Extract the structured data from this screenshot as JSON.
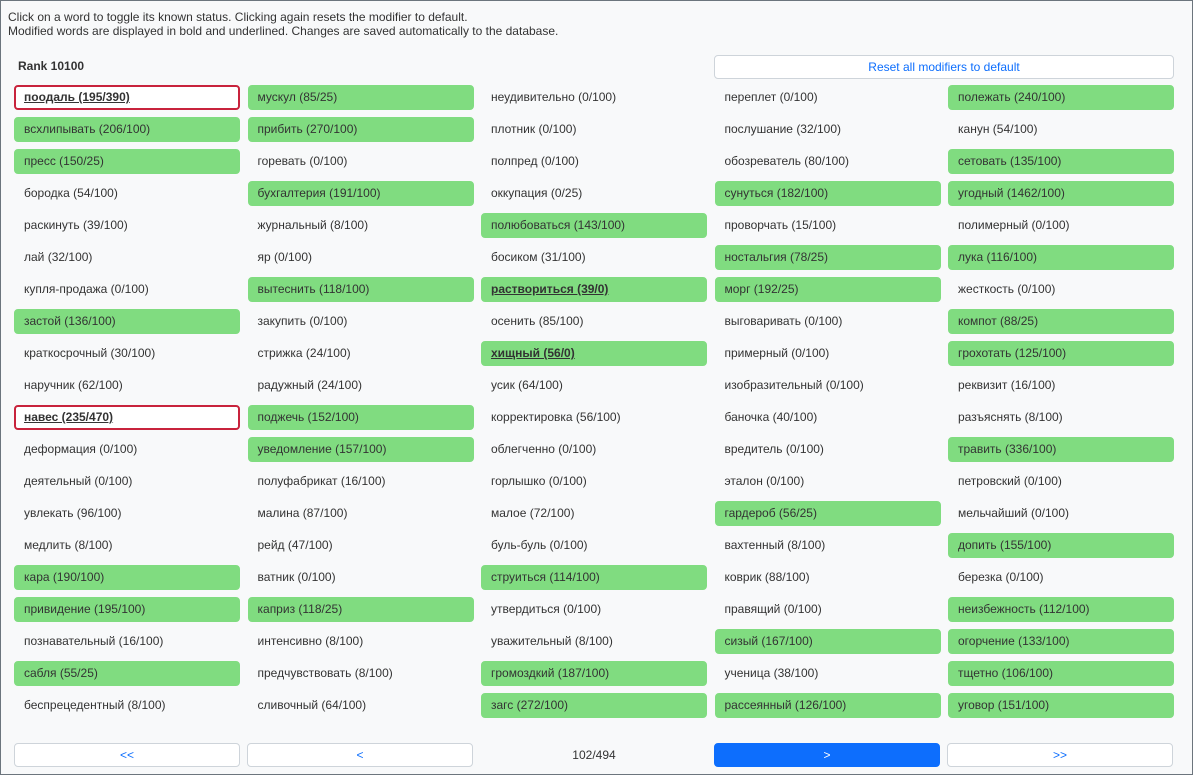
{
  "instructions": {
    "line1": "Click on a word to toggle its known status. Clicking again resets the modifier to default.",
    "line2": "Modified words are displayed in bold and underlined. Changes are saved automatically to the database."
  },
  "rank_label": "Rank 10100",
  "reset_label": "Reset all modifiers to default",
  "colors": {
    "known": "#80dc80",
    "flagged_border": "#c8233c",
    "primary": "#0d6efd"
  },
  "words": [
    {
      "text": "поодаль (195/390)",
      "known": false,
      "modified": true,
      "flagged": true
    },
    {
      "text": "мускул (85/25)",
      "known": true,
      "modified": false,
      "flagged": false
    },
    {
      "text": "неудивительно (0/100)",
      "known": false,
      "modified": false,
      "flagged": false
    },
    {
      "text": "переплет (0/100)",
      "known": false,
      "modified": false,
      "flagged": false
    },
    {
      "text": "полежать (240/100)",
      "known": true,
      "modified": false,
      "flagged": false
    },
    {
      "text": "всхлипывать (206/100)",
      "known": true,
      "modified": false,
      "flagged": false
    },
    {
      "text": "прибить (270/100)",
      "known": true,
      "modified": false,
      "flagged": false
    },
    {
      "text": "плотник (0/100)",
      "known": false,
      "modified": false,
      "flagged": false
    },
    {
      "text": "послушание (32/100)",
      "known": false,
      "modified": false,
      "flagged": false
    },
    {
      "text": "канун (54/100)",
      "known": false,
      "modified": false,
      "flagged": false
    },
    {
      "text": "пресс (150/25)",
      "known": true,
      "modified": false,
      "flagged": false
    },
    {
      "text": "горевать (0/100)",
      "known": false,
      "modified": false,
      "flagged": false
    },
    {
      "text": "полпред (0/100)",
      "known": false,
      "modified": false,
      "flagged": false
    },
    {
      "text": "обозреватель (80/100)",
      "known": false,
      "modified": false,
      "flagged": false
    },
    {
      "text": "сетовать (135/100)",
      "known": true,
      "modified": false,
      "flagged": false
    },
    {
      "text": "бородка (54/100)",
      "known": false,
      "modified": false,
      "flagged": false
    },
    {
      "text": "бухгалтерия (191/100)",
      "known": true,
      "modified": false,
      "flagged": false
    },
    {
      "text": "оккупация (0/25)",
      "known": false,
      "modified": false,
      "flagged": false
    },
    {
      "text": "сунуться (182/100)",
      "known": true,
      "modified": false,
      "flagged": false
    },
    {
      "text": "угодный (1462/100)",
      "known": true,
      "modified": false,
      "flagged": false
    },
    {
      "text": "раскинуть (39/100)",
      "known": false,
      "modified": false,
      "flagged": false
    },
    {
      "text": "журнальный (8/100)",
      "known": false,
      "modified": false,
      "flagged": false
    },
    {
      "text": "полюбоваться (143/100)",
      "known": true,
      "modified": false,
      "flagged": false
    },
    {
      "text": "проворчать (15/100)",
      "known": false,
      "modified": false,
      "flagged": false
    },
    {
      "text": "полимерный (0/100)",
      "known": false,
      "modified": false,
      "flagged": false
    },
    {
      "text": "лай (32/100)",
      "known": false,
      "modified": false,
      "flagged": false
    },
    {
      "text": "яр (0/100)",
      "known": false,
      "modified": false,
      "flagged": false
    },
    {
      "text": "босиком (31/100)",
      "known": false,
      "modified": false,
      "flagged": false
    },
    {
      "text": "ностальгия (78/25)",
      "known": true,
      "modified": false,
      "flagged": false
    },
    {
      "text": "лука (116/100)",
      "known": true,
      "modified": false,
      "flagged": false
    },
    {
      "text": "купля-продажа (0/100)",
      "known": false,
      "modified": false,
      "flagged": false
    },
    {
      "text": "вытеснить (118/100)",
      "known": true,
      "modified": false,
      "flagged": false
    },
    {
      "text": "раствориться (39/0)",
      "known": true,
      "modified": true,
      "flagged": false
    },
    {
      "text": "морг (192/25)",
      "known": true,
      "modified": false,
      "flagged": false
    },
    {
      "text": "жесткость (0/100)",
      "known": false,
      "modified": false,
      "flagged": false
    },
    {
      "text": "застой (136/100)",
      "known": true,
      "modified": false,
      "flagged": false
    },
    {
      "text": "закупить (0/100)",
      "known": false,
      "modified": false,
      "flagged": false
    },
    {
      "text": "осенить (85/100)",
      "known": false,
      "modified": false,
      "flagged": false
    },
    {
      "text": "выговаривать (0/100)",
      "known": false,
      "modified": false,
      "flagged": false
    },
    {
      "text": "компот (88/25)",
      "known": true,
      "modified": false,
      "flagged": false
    },
    {
      "text": "краткосрочный (30/100)",
      "known": false,
      "modified": false,
      "flagged": false
    },
    {
      "text": "стрижка (24/100)",
      "known": false,
      "modified": false,
      "flagged": false
    },
    {
      "text": "хищный (56/0)",
      "known": true,
      "modified": true,
      "flagged": false
    },
    {
      "text": "примерный (0/100)",
      "known": false,
      "modified": false,
      "flagged": false
    },
    {
      "text": "грохотать (125/100)",
      "known": true,
      "modified": false,
      "flagged": false
    },
    {
      "text": "наручник (62/100)",
      "known": false,
      "modified": false,
      "flagged": false
    },
    {
      "text": "радужный (24/100)",
      "known": false,
      "modified": false,
      "flagged": false
    },
    {
      "text": "усик (64/100)",
      "known": false,
      "modified": false,
      "flagged": false
    },
    {
      "text": "изобразительный (0/100)",
      "known": false,
      "modified": false,
      "flagged": false
    },
    {
      "text": "реквизит (16/100)",
      "known": false,
      "modified": false,
      "flagged": false
    },
    {
      "text": "навес (235/470)",
      "known": false,
      "modified": true,
      "flagged": true
    },
    {
      "text": "поджечь (152/100)",
      "known": true,
      "modified": false,
      "flagged": false
    },
    {
      "text": "корректировка (56/100)",
      "known": false,
      "modified": false,
      "flagged": false
    },
    {
      "text": "баночка (40/100)",
      "known": false,
      "modified": false,
      "flagged": false
    },
    {
      "text": "разъяснять (8/100)",
      "known": false,
      "modified": false,
      "flagged": false
    },
    {
      "text": "деформация (0/100)",
      "known": false,
      "modified": false,
      "flagged": false
    },
    {
      "text": "уведомление (157/100)",
      "known": true,
      "modified": false,
      "flagged": false
    },
    {
      "text": "облегченно (0/100)",
      "known": false,
      "modified": false,
      "flagged": false
    },
    {
      "text": "вредитель (0/100)",
      "known": false,
      "modified": false,
      "flagged": false
    },
    {
      "text": "травить (336/100)",
      "known": true,
      "modified": false,
      "flagged": false
    },
    {
      "text": "деятельный (0/100)",
      "known": false,
      "modified": false,
      "flagged": false
    },
    {
      "text": "полуфабрикат (16/100)",
      "known": false,
      "modified": false,
      "flagged": false
    },
    {
      "text": "горлышко (0/100)",
      "known": false,
      "modified": false,
      "flagged": false
    },
    {
      "text": "эталон (0/100)",
      "known": false,
      "modified": false,
      "flagged": false
    },
    {
      "text": "петровский (0/100)",
      "known": false,
      "modified": false,
      "flagged": false
    },
    {
      "text": "увлекать (96/100)",
      "known": false,
      "modified": false,
      "flagged": false
    },
    {
      "text": "малина (87/100)",
      "known": false,
      "modified": false,
      "flagged": false
    },
    {
      "text": "малое (72/100)",
      "known": false,
      "modified": false,
      "flagged": false
    },
    {
      "text": "гардероб (56/25)",
      "known": true,
      "modified": false,
      "flagged": false
    },
    {
      "text": "мельчайший (0/100)",
      "known": false,
      "modified": false,
      "flagged": false
    },
    {
      "text": "медлить (8/100)",
      "known": false,
      "modified": false,
      "flagged": false
    },
    {
      "text": "рейд (47/100)",
      "known": false,
      "modified": false,
      "flagged": false
    },
    {
      "text": "буль-буль (0/100)",
      "known": false,
      "modified": false,
      "flagged": false
    },
    {
      "text": "вахтенный (8/100)",
      "known": false,
      "modified": false,
      "flagged": false
    },
    {
      "text": "допить (155/100)",
      "known": true,
      "modified": false,
      "flagged": false
    },
    {
      "text": "кара (190/100)",
      "known": true,
      "modified": false,
      "flagged": false
    },
    {
      "text": "ватник (0/100)",
      "known": false,
      "modified": false,
      "flagged": false
    },
    {
      "text": "струиться (114/100)",
      "known": true,
      "modified": false,
      "flagged": false
    },
    {
      "text": "коврик (88/100)",
      "known": false,
      "modified": false,
      "flagged": false
    },
    {
      "text": "березка (0/100)",
      "known": false,
      "modified": false,
      "flagged": false
    },
    {
      "text": "привидение (195/100)",
      "known": true,
      "modified": false,
      "flagged": false
    },
    {
      "text": "каприз (118/25)",
      "known": true,
      "modified": false,
      "flagged": false
    },
    {
      "text": "утвердиться (0/100)",
      "known": false,
      "modified": false,
      "flagged": false
    },
    {
      "text": "правящий (0/100)",
      "known": false,
      "modified": false,
      "flagged": false
    },
    {
      "text": "неизбежность (112/100)",
      "known": true,
      "modified": false,
      "flagged": false
    },
    {
      "text": "познавательный (16/100)",
      "known": false,
      "modified": false,
      "flagged": false
    },
    {
      "text": "интенсивно (8/100)",
      "known": false,
      "modified": false,
      "flagged": false
    },
    {
      "text": "уважительный (8/100)",
      "known": false,
      "modified": false,
      "flagged": false
    },
    {
      "text": "сизый (167/100)",
      "known": true,
      "modified": false,
      "flagged": false
    },
    {
      "text": "огорчение (133/100)",
      "known": true,
      "modified": false,
      "flagged": false
    },
    {
      "text": "сабля (55/25)",
      "known": true,
      "modified": false,
      "flagged": false
    },
    {
      "text": "предчувствовать (8/100)",
      "known": false,
      "modified": false,
      "flagged": false
    },
    {
      "text": "громоздкий (187/100)",
      "known": true,
      "modified": false,
      "flagged": false
    },
    {
      "text": "ученица (38/100)",
      "known": false,
      "modified": false,
      "flagged": false
    },
    {
      "text": "тщетно (106/100)",
      "known": true,
      "modified": false,
      "flagged": false
    },
    {
      "text": "беспрецедентный (8/100)",
      "known": false,
      "modified": false,
      "flagged": false
    },
    {
      "text": "сливочный (64/100)",
      "known": false,
      "modified": false,
      "flagged": false
    },
    {
      "text": "загс (272/100)",
      "known": true,
      "modified": false,
      "flagged": false
    },
    {
      "text": "рассеянный (126/100)",
      "known": true,
      "modified": false,
      "flagged": false
    },
    {
      "text": "уговор (151/100)",
      "known": true,
      "modified": false,
      "flagged": false
    }
  ],
  "pagination": {
    "first_label": "<<",
    "prev_label": "<",
    "page_info": "102/494",
    "next_label": ">",
    "last_label": ">>"
  }
}
